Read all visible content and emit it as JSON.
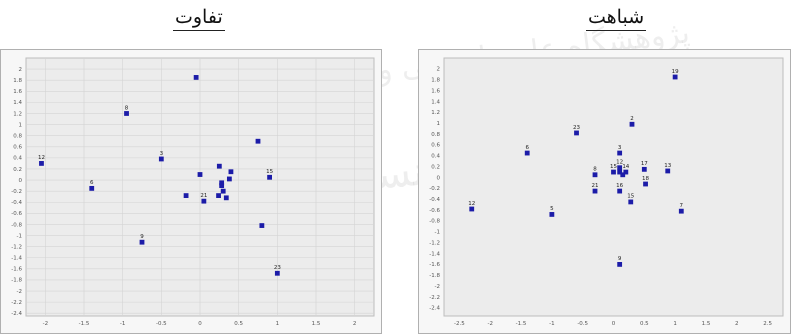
{
  "titles": {
    "left": "تفاوت",
    "right": "شباهت"
  },
  "watermark": {
    "line1": "پژوهشگاه علوم انسانی و مطالعات فرهنگی",
    "line2": "پرتال جامع علوم انسانی"
  },
  "colors": {
    "marker": "#1c1ca8",
    "plot_bg": "#ececec",
    "grid": "#d4d4d4",
    "frame": "#b0b0b0"
  },
  "chart_data": [
    {
      "type": "scatter",
      "title": "تفاوت",
      "xlim": [
        -2.25,
        2.25
      ],
      "ylim": [
        -2.45,
        2.2
      ],
      "x_ticks": [
        -2,
        -1.5,
        -1,
        -0.5,
        0,
        0.5,
        1,
        1.5,
        2
      ],
      "x_tick_labels": [
        "-2",
        "-1.5",
        "-1",
        "-0.5",
        "0",
        "0.5",
        "1",
        "1.5",
        "2"
      ],
      "y_ticks": [
        2,
        1.8,
        1.6,
        1.4,
        1.2,
        1,
        0.8,
        0.6,
        0.4,
        0.2,
        0,
        -0.2,
        -0.4,
        -0.6,
        -0.8,
        -1,
        -1.2,
        -1.4,
        -1.6,
        -1.8,
        -2,
        -2.2,
        -2.4
      ],
      "y_tick_labels": [
        "2",
        "1.8",
        "1.6",
        "1.4",
        "1.2",
        "1",
        "0.8",
        "0.6",
        "0.4",
        "0.2",
        "0",
        "-0.2",
        "-0.4",
        "-0.6",
        "-0.8",
        "-1",
        "-1.2",
        "-1.4",
        "-1.6",
        "-1.8",
        "-2",
        "-2.2",
        "-2.4"
      ],
      "grid": true,
      "points": [
        {
          "label": "",
          "x": -0.05,
          "y": 1.85
        },
        {
          "label": "8",
          "x": -0.95,
          "y": 1.2
        },
        {
          "label": "12",
          "x": -2.05,
          "y": 0.3
        },
        {
          "label": "6",
          "x": -1.4,
          "y": -0.15
        },
        {
          "label": "3",
          "x": -0.5,
          "y": 0.38
        },
        {
          "label": "",
          "x": 0.0,
          "y": 0.1
        },
        {
          "label": "",
          "x": 0.25,
          "y": 0.25
        },
        {
          "label": "",
          "x": 0.4,
          "y": 0.15
        },
        {
          "label": "",
          "x": 0.75,
          "y": 0.7
        },
        {
          "label": "15",
          "x": 0.9,
          "y": 0.05
        },
        {
          "label": "21",
          "x": 0.05,
          "y": -0.38
        },
        {
          "label": "",
          "x": -0.18,
          "y": -0.28
        },
        {
          "label": "",
          "x": 0.28,
          "y": -0.1
        },
        {
          "label": "",
          "x": 0.3,
          "y": -0.2
        },
        {
          "label": "",
          "x": 0.24,
          "y": -0.28
        },
        {
          "label": "",
          "x": 0.34,
          "y": -0.32
        },
        {
          "label": "",
          "x": 0.28,
          "y": -0.05
        },
        {
          "label": "",
          "x": 0.38,
          "y": 0.02
        },
        {
          "label": "9",
          "x": -0.75,
          "y": -1.12
        },
        {
          "label": "",
          "x": 0.8,
          "y": -0.82
        },
        {
          "label": "23",
          "x": 1.0,
          "y": -1.68
        }
      ]
    },
    {
      "type": "scatter",
      "title": "شباهت",
      "xlim": [
        -2.75,
        2.75
      ],
      "ylim": [
        -2.55,
        2.2
      ],
      "x_ticks": [
        -2.5,
        -2,
        -1.5,
        -1,
        -0.5,
        0,
        0.5,
        1,
        1.5,
        2,
        2.5
      ],
      "x_tick_labels": [
        "-2.5",
        "-2",
        "-1.5",
        "-1",
        "-0.5",
        "0",
        "0.5",
        "1",
        "1.5",
        "2",
        "2.5"
      ],
      "y_ticks": [
        2,
        1.8,
        1.6,
        1.4,
        1.2,
        1,
        0.8,
        0.6,
        0.4,
        0.2,
        0,
        -0.2,
        -0.4,
        -0.6,
        -0.8,
        -1,
        -1.2,
        -1.4,
        -1.6,
        -1.8,
        -2,
        -2.2,
        -2.4
      ],
      "y_tick_labels": [
        "2",
        "1.8",
        "1.6",
        "1.4",
        "1.2",
        "1",
        "0.8",
        "0.6",
        "0.4",
        "0.2",
        "0",
        "-0.2",
        "-0.4",
        "-0.6",
        "-0.8",
        "-1",
        "-1.2",
        "-1.4",
        "-1.6",
        "-1.8",
        "-2",
        "-2.2",
        "-2.4"
      ],
      "grid": false,
      "points": [
        {
          "label": "19",
          "x": 1.0,
          "y": 1.85
        },
        {
          "label": "2",
          "x": 0.3,
          "y": 0.98
        },
        {
          "label": "23",
          "x": -0.6,
          "y": 0.82
        },
        {
          "label": "6",
          "x": -1.4,
          "y": 0.45
        },
        {
          "label": "3",
          "x": 0.1,
          "y": 0.45
        },
        {
          "label": "8",
          "x": -0.3,
          "y": 0.05
        },
        {
          "label": "15",
          "x": 0.0,
          "y": 0.1
        },
        {
          "label": "12",
          "x": 0.1,
          "y": 0.18
        },
        {
          "label": "14",
          "x": 0.2,
          "y": 0.1
        },
        {
          "label": "",
          "x": 0.1,
          "y": 0.1
        },
        {
          "label": "",
          "x": 0.15,
          "y": 0.05
        },
        {
          "label": "17",
          "x": 0.5,
          "y": 0.15
        },
        {
          "label": "13",
          "x": 0.88,
          "y": 0.12
        },
        {
          "label": "18",
          "x": 0.52,
          "y": -0.12
        },
        {
          "label": "21",
          "x": -0.3,
          "y": -0.25
        },
        {
          "label": "16",
          "x": 0.1,
          "y": -0.25
        },
        {
          "label": "15",
          "x": 0.28,
          "y": -0.45
        },
        {
          "label": "7",
          "x": 1.1,
          "y": -0.62
        },
        {
          "label": "12",
          "x": -2.3,
          "y": -0.58
        },
        {
          "label": "5",
          "x": -1.0,
          "y": -0.68
        },
        {
          "label": "9",
          "x": 0.1,
          "y": -1.6
        }
      ]
    }
  ]
}
